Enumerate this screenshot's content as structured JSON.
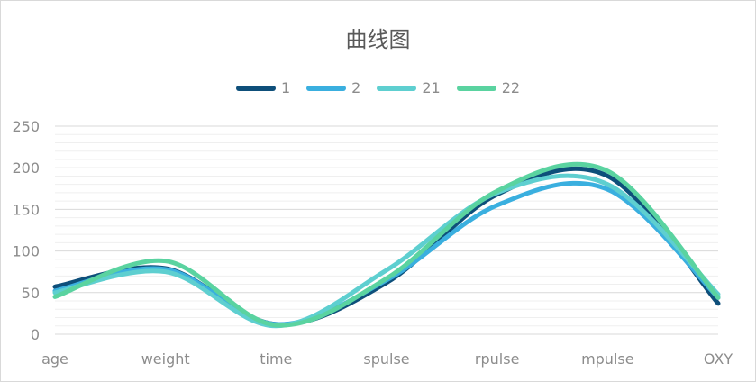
{
  "chart_data": {
    "type": "line",
    "title": "曲线图",
    "categories": [
      "age",
      "weight",
      "time",
      "spulse",
      "rpulse",
      "mpulse",
      "OXY"
    ],
    "ylim": [
      0,
      250
    ],
    "yticks": [
      0,
      50,
      100,
      150,
      200,
      250
    ],
    "grid": true,
    "legend_position": "top",
    "series": [
      {
        "name": "1",
        "color": "#0e4f7a",
        "values": [
          57,
          79,
          12,
          62,
          168,
          190,
          37
        ]
      },
      {
        "name": "2",
        "color": "#3aafdf",
        "values": [
          52,
          78,
          12,
          65,
          155,
          174,
          44
        ]
      },
      {
        "name": "21",
        "color": "#5ecfd0",
        "values": [
          50,
          75,
          10,
          77,
          170,
          180,
          48
        ]
      },
      {
        "name": "22",
        "color": "#5ad3a0",
        "values": [
          45,
          88,
          11,
          67,
          172,
          196,
          44
        ]
      }
    ]
  }
}
